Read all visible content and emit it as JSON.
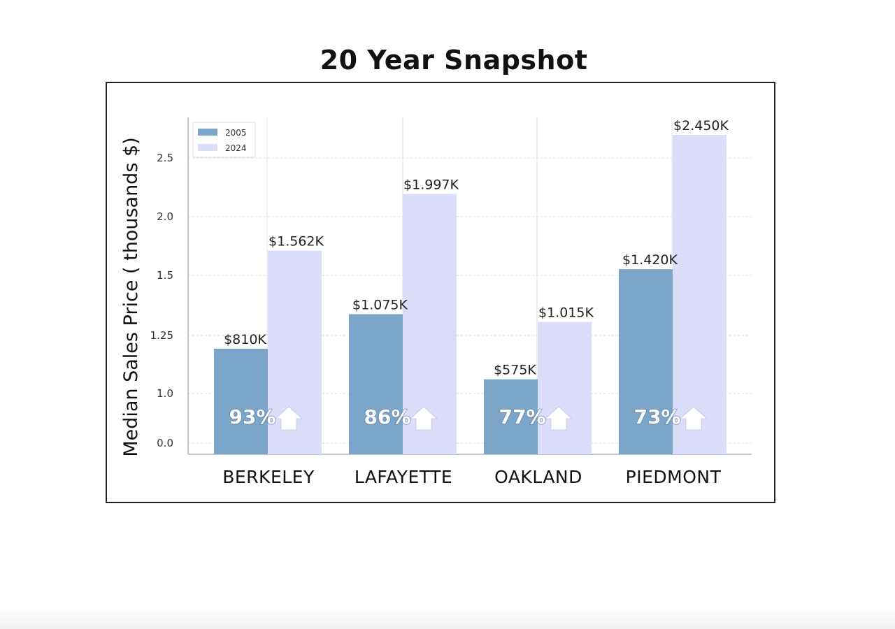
{
  "chart_data": {
    "type": "bar",
    "title": "20 Year Snapshot",
    "xlabel": "",
    "ylabel": "Median Sales Price ( thousands $)",
    "categories": [
      "BERKELEY",
      "LAFAYETTE",
      "OAKLAND",
      "PIEDMONT"
    ],
    "series": [
      {
        "name": "2005",
        "color": "#7ba6c9",
        "values": [
          810,
          1075,
          575,
          1420
        ],
        "labels": [
          "$810K",
          "$1.075K",
          "$575K",
          "$1.420K"
        ]
      },
      {
        "name": "2024",
        "color": "#dcdcfb",
        "values": [
          1562,
          1997,
          1015,
          2450
        ],
        "labels": [
          "$1.562K",
          "$1.997K",
          "$1.015K",
          "$2.450K"
        ]
      }
    ],
    "change_labels": [
      "93%",
      "86%",
      "77%",
      "73%"
    ],
    "change_icon": "arrow-up-icon",
    "y_tick_labels": [
      "0.0",
      "1.0",
      "1.25",
      "1.5",
      "2.0",
      "2.5"
    ],
    "grid": true,
    "legend_position": "top-left"
  }
}
